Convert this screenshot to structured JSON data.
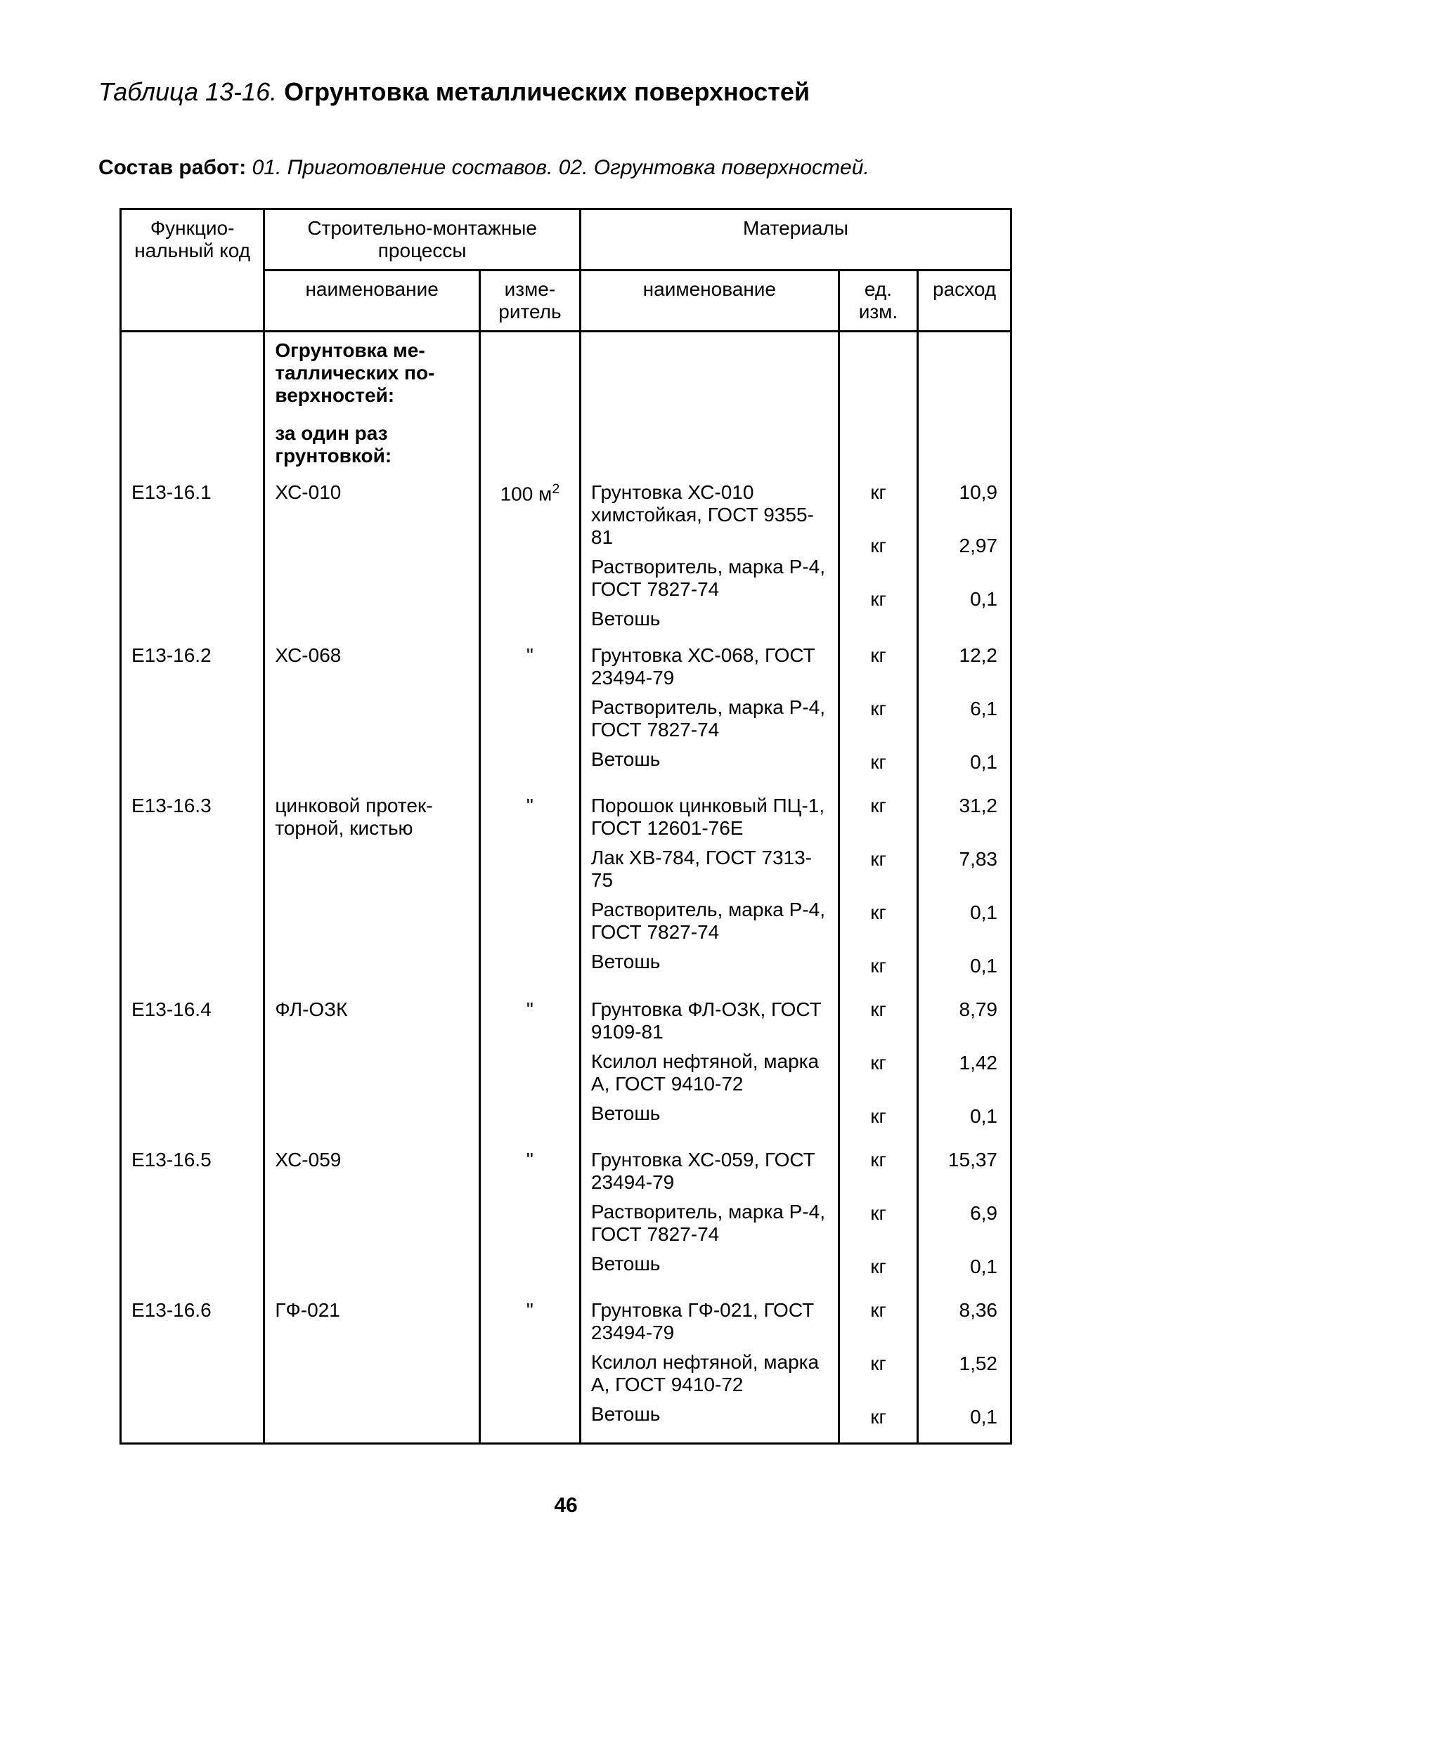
{
  "title": {
    "prefix": "Таблица 13-16.",
    "main": "Огрунтовка металлических поверхностей"
  },
  "sostav": {
    "label": "Состав работ:",
    "text": "01. Приготовление составов. 02. Огрунтовка поверхностей."
  },
  "columns": {
    "code": "Функцио­нальный код",
    "process_group": "Строительно-монтажные процессы",
    "process_name": "наименование",
    "process_unit": "изме­ритель",
    "materials_group": "Материалы",
    "mat_name": "наименование",
    "mat_unit": "ед. изм.",
    "mat_rate": "расход"
  },
  "widths": {
    "code": 200,
    "proc_name": 300,
    "proc_unit": 140,
    "mat_name": 360,
    "mat_unit": 110,
    "mat_rate": 130
  },
  "section_header1": "Огрунтовка ме­таллических по­верхностей:",
  "section_header2": "за один раз грунтовкой:",
  "rows": [
    {
      "code": "Е13-16.1",
      "proc_name": "ХС-010",
      "proc_unit": "100 м",
      "proc_unit_sup": "2",
      "first": true,
      "materials": [
        {
          "name": "Грунтовка ХС-010 химстойкая, ГОСТ 9355-81",
          "unit": "кг",
          "rate": "10,9"
        },
        {
          "name": "Растворитель, марка Р-4, ГОСТ 7827-74",
          "unit": "кг",
          "rate": "2,97"
        },
        {
          "name": "Ветошь",
          "unit": "кг",
          "rate": "0,1"
        }
      ]
    },
    {
      "code": "Е13-16.2",
      "proc_name": "ХС-068",
      "proc_unit": "\"",
      "materials": [
        {
          "name": "Грунтовка ХС-068, ГОСТ 23494-79",
          "unit": "кг",
          "rate": "12,2"
        },
        {
          "name": "Растворитель, марка Р-4, ГОСТ 7827-74",
          "unit": "кг",
          "rate": "6,1"
        },
        {
          "name": "Ветошь",
          "unit": "кг",
          "rate": "0,1"
        }
      ]
    },
    {
      "code": "Е13-16.3",
      "proc_name": "цинковой протек­торной, кистью",
      "proc_unit": "\"",
      "materials": [
        {
          "name": "Порошок цинковый ПЦ-1, ГОСТ 12601-76Е",
          "unit": "кг",
          "rate": "31,2"
        },
        {
          "name": "Лак ХВ-784, ГОСТ 7313-75",
          "unit": "кг",
          "rate": "7,83"
        },
        {
          "name": "Растворитель, марка Р-4, ГОСТ 7827-74",
          "unit": "кг",
          "rate": "0,1"
        },
        {
          "name": "Ветошь",
          "unit": "кг",
          "rate": "0,1"
        }
      ]
    },
    {
      "code": "Е13-16.4",
      "proc_name": "ФЛ-ОЗК",
      "proc_unit": "\"",
      "materials": [
        {
          "name": "Грунтовка ФЛ-ОЗК, ГОСТ 9109-81",
          "unit": "кг",
          "rate": "8,79"
        },
        {
          "name": "Ксилол нефтяной, марка А, ГОСТ 9410-72",
          "unit": "кг",
          "rate": "1,42"
        },
        {
          "name": "Ветошь",
          "unit": "кг",
          "rate": "0,1"
        }
      ]
    },
    {
      "code": "Е13-16.5",
      "proc_name": "ХС-059",
      "proc_unit": "\"",
      "materials": [
        {
          "name": "Грунтовка ХС-059, ГОСТ 23494-79",
          "unit": "кг",
          "rate": "15,37"
        },
        {
          "name": "Растворитель, марка Р-4, ГОСТ 7827-74",
          "unit": "кг",
          "rate": "6,9"
        },
        {
          "name": "Ветошь",
          "unit": "кг",
          "rate": "0,1"
        }
      ]
    },
    {
      "code": "Е13-16.6",
      "proc_name": "ГФ-021",
      "proc_unit": "\"",
      "last": true,
      "materials": [
        {
          "name": "Грунтовка ГФ-021, ГОСТ 23494-79",
          "unit": "кг",
          "rate": "8,36"
        },
        {
          "name": "Ксилол нефтяной, марка А, ГОСТ 9410-72",
          "unit": "кг",
          "rate": "1,52"
        },
        {
          "name": "Ветошь",
          "unit": "кг",
          "rate": "0,1"
        }
      ]
    }
  ],
  "page_number": "46",
  "colors": {
    "text": "#000000",
    "background": "#ffffff",
    "border": "#000000"
  },
  "typography": {
    "title_fontsize": 36,
    "body_fontsize": 30,
    "table_fontsize": 28
  }
}
